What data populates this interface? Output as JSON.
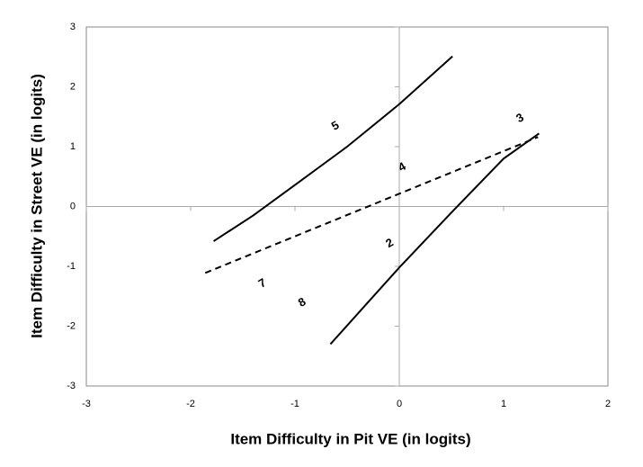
{
  "chart_data": {
    "type": "scatter",
    "xlabel": "Item Difficulty in Pit VE (in logits)",
    "ylabel": "Item Difficulty in Street VE (in logits)",
    "xlim": [
      -3,
      2
    ],
    "ylim": [
      -3,
      3
    ],
    "xticks": [
      -3,
      -2,
      -1,
      0,
      1,
      2
    ],
    "yticks": [
      -3,
      -2,
      -1,
      0,
      1,
      2,
      3
    ],
    "points": [
      {
        "label": "5",
        "x": -0.61,
        "y": 1.34
      },
      {
        "label": "3",
        "x": 1.16,
        "y": 1.47
      },
      {
        "label": "4",
        "x": 0.03,
        "y": 0.65
      },
      {
        "label": "2",
        "x": -0.09,
        "y": -0.62
      },
      {
        "label": "7",
        "x": -1.31,
        "y": -1.29
      },
      {
        "label": "8",
        "x": -0.93,
        "y": -1.61
      }
    ],
    "lines": [
      {
        "x": [
          -1.78,
          -1.4,
          -1,
          -0.5,
          0,
          0.51
        ],
        "y": [
          -0.58,
          -0.15,
          0.36,
          1.0,
          1.71,
          2.51
        ],
        "color": "#000000",
        "dashed": false
      },
      {
        "x": [
          -0.66,
          -0.3,
          0,
          0.5,
          1,
          1.34
        ],
        "y": [
          -2.3,
          -1.6,
          -1.02,
          -0.1,
          0.8,
          1.22
        ],
        "color": "#000000",
        "dashed": false
      },
      {
        "x": [
          -1.86,
          1.33
        ],
        "y": [
          -1.11,
          1.16
        ],
        "color": "#000000",
        "dashed": true
      }
    ],
    "color": "#000000"
  }
}
